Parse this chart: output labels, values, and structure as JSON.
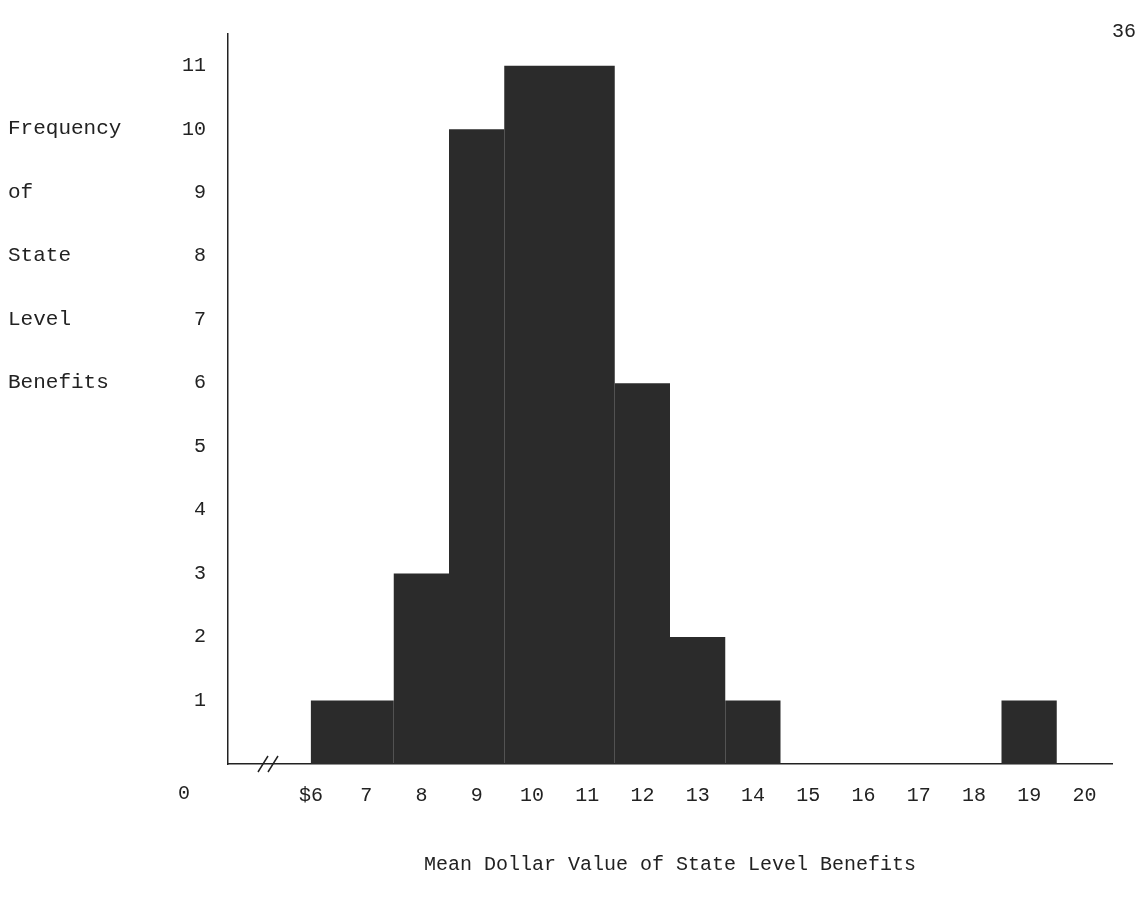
{
  "chart_data": {
    "type": "histogram",
    "xlabel": "Mean Dollar Value of State Level Benefits",
    "ylabel": "Frequency of State Level Benefits",
    "annotations": [
      "0",
      "36"
    ],
    "bins": [
      6,
      7.5,
      8.5,
      9.5,
      11.5,
      12.5,
      13.5,
      14.5,
      18.5,
      19.5
    ],
    "values": [
      1,
      3,
      10,
      11,
      6,
      2,
      1,
      0,
      1
    ],
    "color": "#2b2b2b",
    "xlim": [
      4.5,
      20.5
    ],
    "xticks": [
      {
        "value": 6,
        "label": "$6"
      },
      7,
      8,
      9,
      10,
      11,
      12,
      13,
      14,
      15,
      16,
      17,
      18,
      19,
      20
    ],
    "ylim": [
      0,
      11.5
    ],
    "yticks": [
      1,
      2,
      3,
      4,
      5,
      6,
      7,
      8,
      9,
      10,
      11
    ],
    "grid": false,
    "legend": false
  }
}
